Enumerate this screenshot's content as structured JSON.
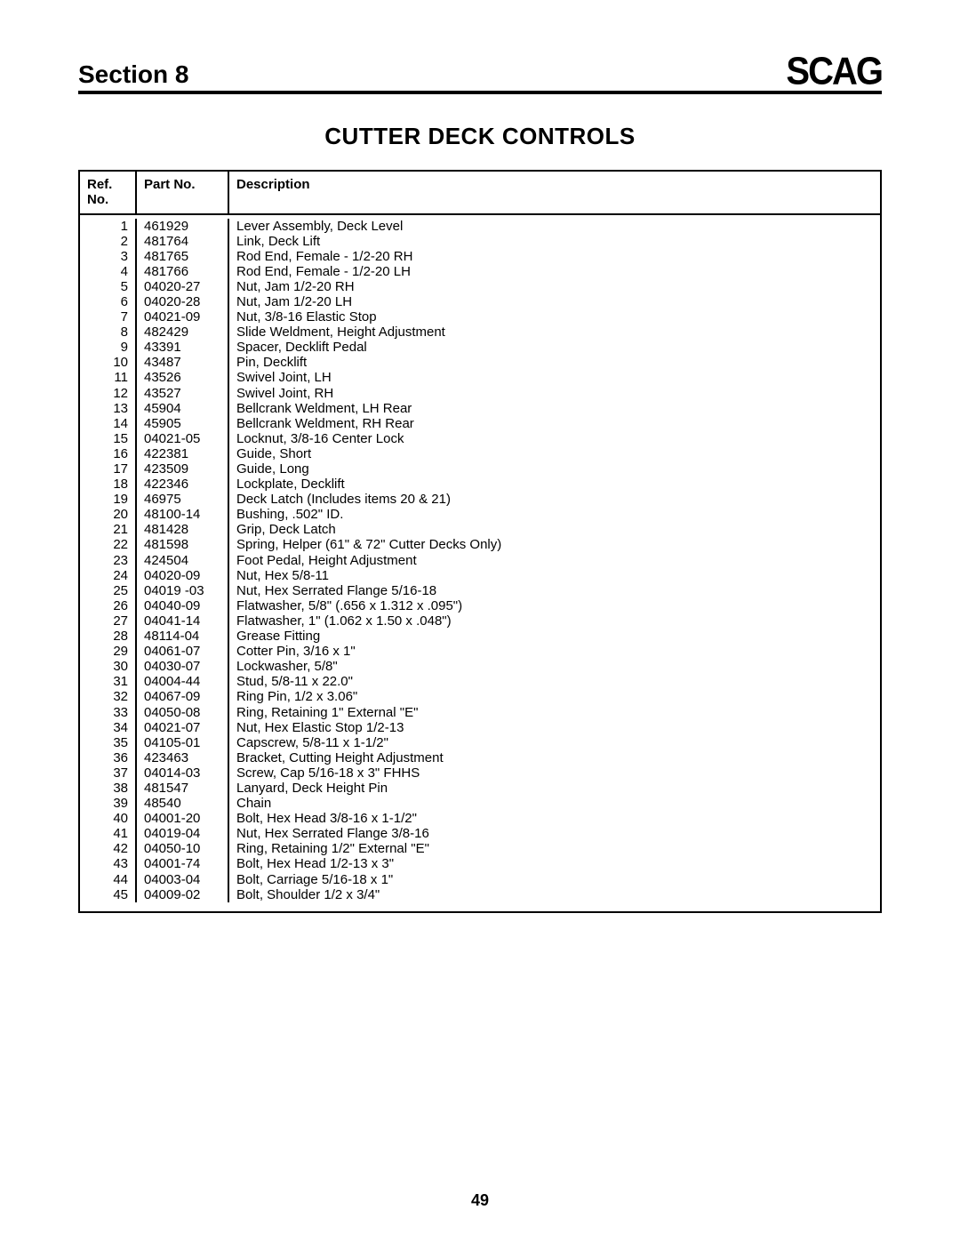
{
  "header": {
    "section_label": "Section 8",
    "logo_text": "SCAG"
  },
  "title": "CUTTER DECK CONTROLS",
  "table": {
    "columns": {
      "ref_line1": "Ref.",
      "ref_line2": "No.",
      "part": "Part No.",
      "desc": "Description"
    },
    "rows": [
      {
        "ref": "1",
        "part": "461929",
        "desc": "Lever Assembly, Deck Level"
      },
      {
        "ref": "2",
        "part": "481764",
        "desc": "Link, Deck Lift"
      },
      {
        "ref": "3",
        "part": "481765",
        "desc": "Rod End, Female - 1/2-20 RH"
      },
      {
        "ref": "4",
        "part": "481766",
        "desc": "Rod End, Female - 1/2-20 LH"
      },
      {
        "ref": "5",
        "part": "04020-27",
        "desc": "Nut, Jam 1/2-20 RH"
      },
      {
        "ref": "6",
        "part": "04020-28",
        "desc": "Nut, Jam 1/2-20 LH"
      },
      {
        "ref": "7",
        "part": "04021-09",
        "desc": "Nut, 3/8-16 Elastic Stop"
      },
      {
        "ref": "8",
        "part": "482429",
        "desc": "Slide Weldment, Height Adjustment"
      },
      {
        "ref": "9",
        "part": "43391",
        "desc": "Spacer, Decklift Pedal"
      },
      {
        "ref": "10",
        "part": "43487",
        "desc": "Pin, Decklift"
      },
      {
        "ref": "11",
        "part": "43526",
        "desc": "Swivel Joint, LH"
      },
      {
        "ref": "12",
        "part": "43527",
        "desc": "Swivel Joint, RH"
      },
      {
        "ref": "13",
        "part": "45904",
        "desc": "Bellcrank Weldment, LH Rear"
      },
      {
        "ref": "14",
        "part": "45905",
        "desc": "Bellcrank Weldment, RH Rear"
      },
      {
        "ref": "15",
        "part": "04021-05",
        "desc": "Locknut, 3/8-16 Center Lock"
      },
      {
        "ref": "16",
        "part": "422381",
        "desc": "Guide, Short"
      },
      {
        "ref": "17",
        "part": "423509",
        "desc": "Guide, Long"
      },
      {
        "ref": "18",
        "part": "422346",
        "desc": "Lockplate, Decklift"
      },
      {
        "ref": "19",
        "part": "46975",
        "desc": "Deck Latch (Includes items 20 & 21)"
      },
      {
        "ref": "20",
        "part": "48100-14",
        "desc": "Bushing, .502\" ID."
      },
      {
        "ref": "21",
        "part": "481428",
        "desc": "Grip, Deck Latch"
      },
      {
        "ref": "22",
        "part": "481598",
        "desc": "Spring, Helper (61\" & 72\" Cutter Decks Only)"
      },
      {
        "ref": "23",
        "part": "424504",
        "desc": "Foot Pedal, Height Adjustment"
      },
      {
        "ref": "24",
        "part": "04020-09",
        "desc": "Nut, Hex 5/8-11"
      },
      {
        "ref": "25",
        "part": "04019 -03",
        "desc": "Nut, Hex Serrated Flange 5/16-18"
      },
      {
        "ref": "26",
        "part": "04040-09",
        "desc": "Flatwasher, 5/8\" (.656 x 1.312 x .095\")"
      },
      {
        "ref": "27",
        "part": "04041-14",
        "desc": "Flatwasher, 1\" (1.062 x 1.50 x .048\")"
      },
      {
        "ref": "28",
        "part": "48114-04",
        "desc": "Grease Fitting"
      },
      {
        "ref": "29",
        "part": "04061-07",
        "desc": "Cotter Pin, 3/16 x 1\""
      },
      {
        "ref": "30",
        "part": "04030-07",
        "desc": "Lockwasher, 5/8\""
      },
      {
        "ref": "31",
        "part": "04004-44",
        "desc": "Stud, 5/8-11 x 22.0\""
      },
      {
        "ref": "32",
        "part": "04067-09",
        "desc": "Ring Pin, 1/2 x 3.06\""
      },
      {
        "ref": "33",
        "part": "04050-08",
        "desc": "Ring, Retaining 1\" External \"E\""
      },
      {
        "ref": "34",
        "part": "04021-07",
        "desc": "Nut, Hex Elastic Stop 1/2-13"
      },
      {
        "ref": "35",
        "part": "04105-01",
        "desc": "Capscrew, 5/8-11 x 1-1/2\""
      },
      {
        "ref": "36",
        "part": "423463",
        "desc": "Bracket, Cutting Height Adjustment"
      },
      {
        "ref": "37",
        "part": "04014-03",
        "desc": "Screw, Cap 5/16-18 x 3\" FHHS"
      },
      {
        "ref": "38",
        "part": "481547",
        "desc": "Lanyard, Deck Height Pin"
      },
      {
        "ref": "39",
        "part": "48540",
        "desc": "Chain"
      },
      {
        "ref": "40",
        "part": "04001-20",
        "desc": "Bolt, Hex Head 3/8-16 x 1-1/2\""
      },
      {
        "ref": "41",
        "part": "04019-04",
        "desc": "Nut, Hex Serrated Flange 3/8-16"
      },
      {
        "ref": "42",
        "part": "04050-10",
        "desc": "Ring, Retaining 1/2\" External \"E\""
      },
      {
        "ref": "43",
        "part": "04001-74",
        "desc": "Bolt, Hex Head 1/2-13 x 3\""
      },
      {
        "ref": "44",
        "part": "04003-04",
        "desc": "Bolt, Carriage 5/16-18 x 1\""
      },
      {
        "ref": "45",
        "part": "04009-02",
        "desc": "Bolt, Shoulder 1/2 x 3/4\""
      }
    ]
  },
  "page_number": "49"
}
